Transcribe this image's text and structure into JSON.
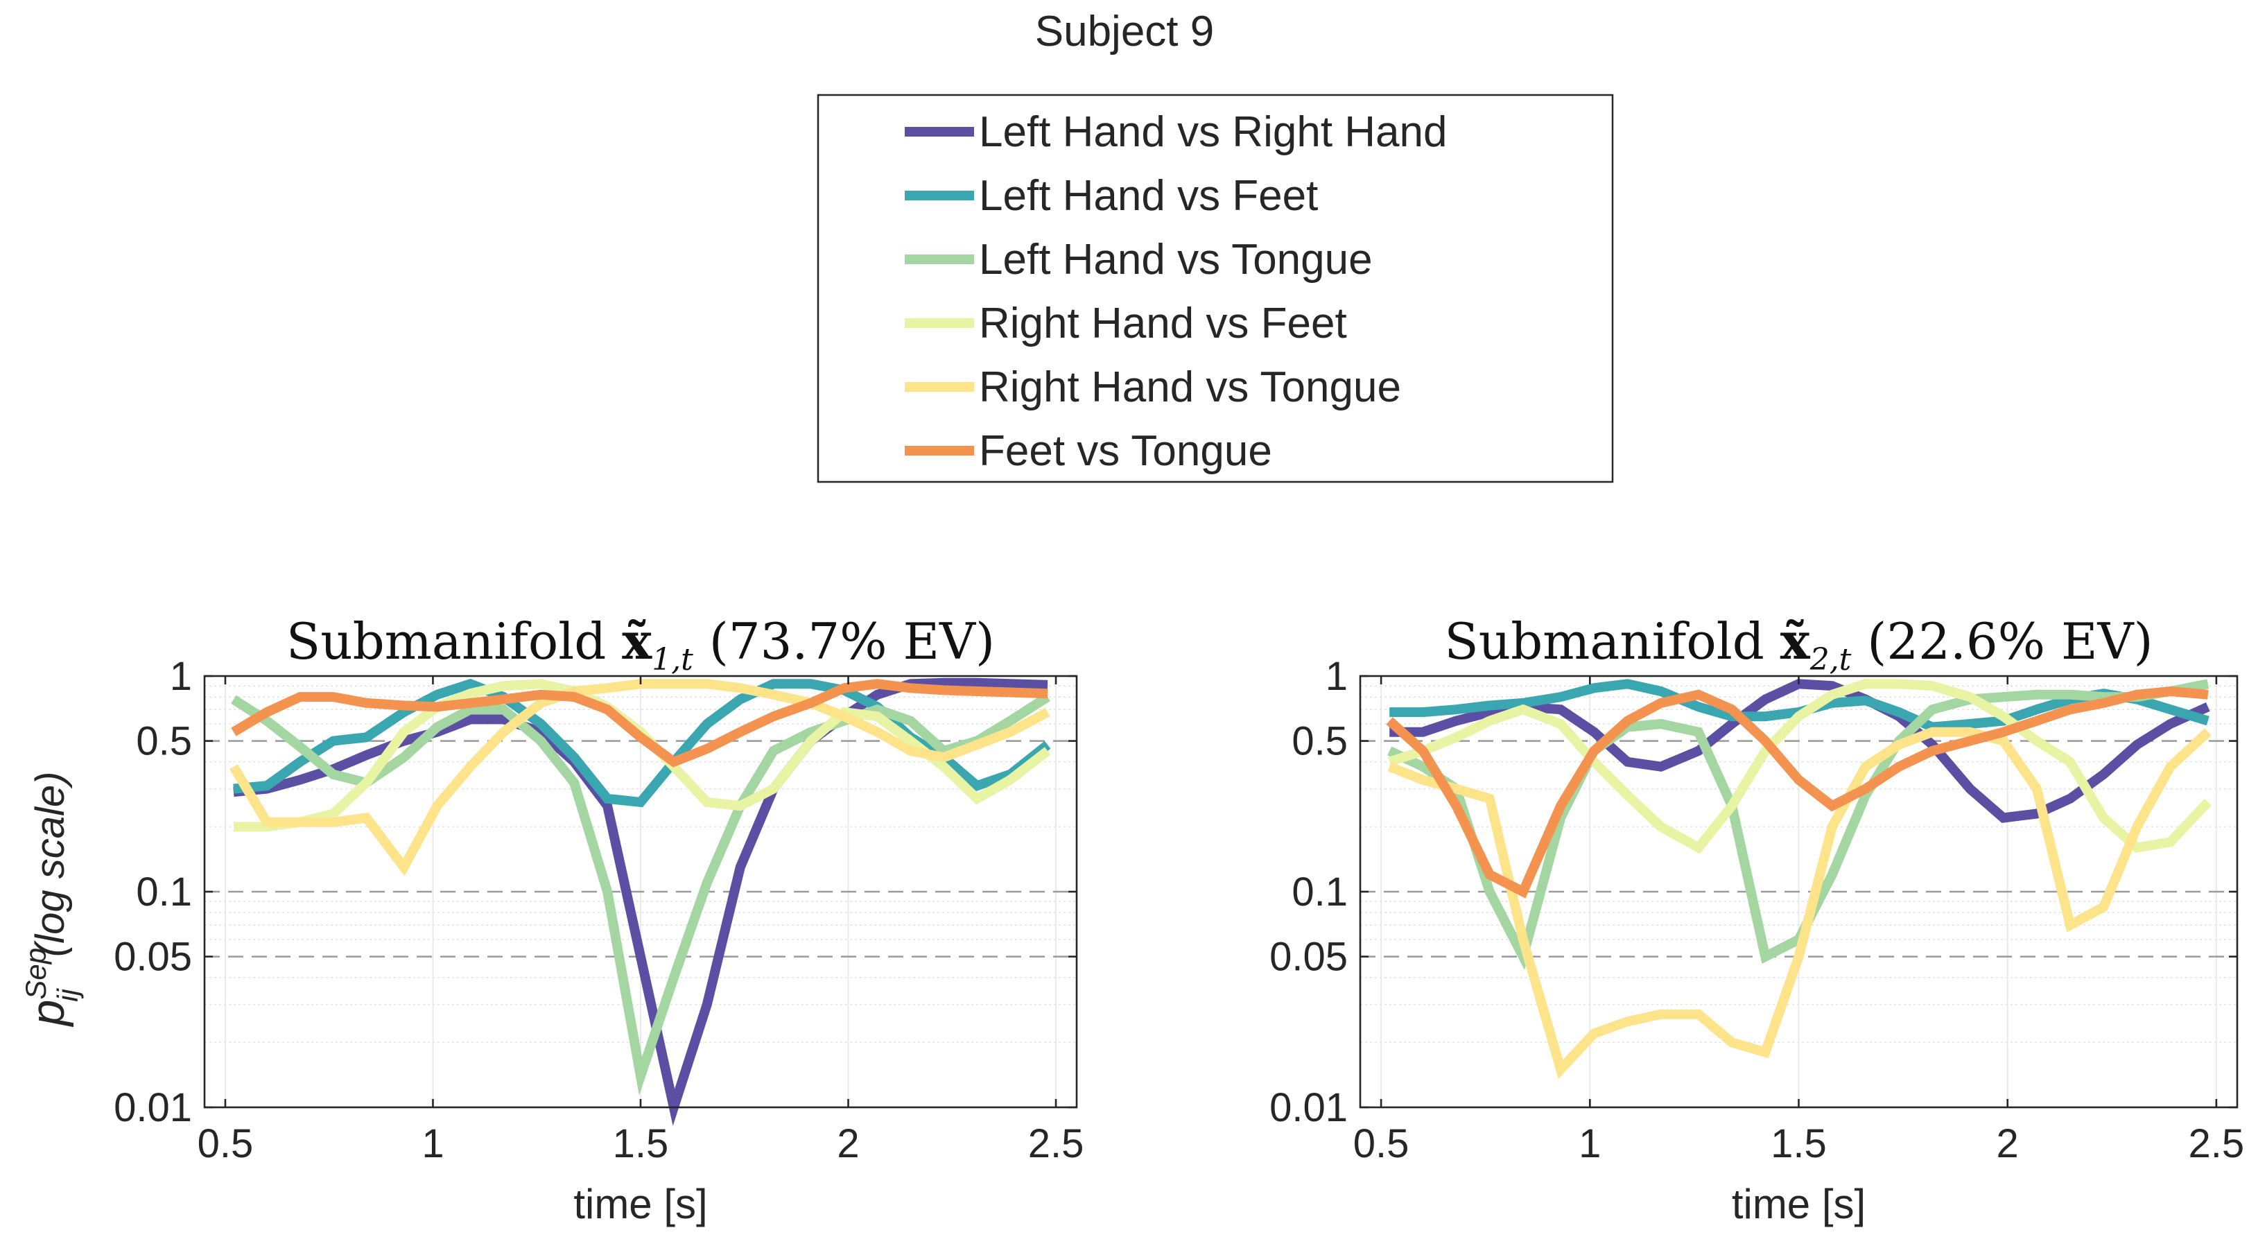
{
  "figure": {
    "suptitle": "Subject 9"
  },
  "legend": {
    "entries": [
      {
        "label": "Left Hand vs Right Hand",
        "color": "#5a4fa3"
      },
      {
        "label": "Left Hand vs Feet",
        "color": "#3aa6b0"
      },
      {
        "label": "Left Hand vs Tongue",
        "color": "#a3d6a0"
      },
      {
        "label": "Right Hand vs Feet",
        "color": "#e8f3a4"
      },
      {
        "label": "Right Hand vs Tongue",
        "color": "#fde48a"
      },
      {
        "label": "Feet vs Tongue",
        "color": "#f4924f"
      }
    ]
  },
  "chart_data": [
    {
      "type": "line",
      "title_prefix": "Submanifold ",
      "title_symbol": "x̃",
      "title_subscript": "1,t",
      "title_suffix": " (73.7% EV)",
      "xlabel": "time [s]",
      "ylabel_base": "p",
      "ylabel_sup": "Sep",
      "ylabel_sub": "ij",
      "ylabel_rest": " (log scale)",
      "yscale": "log",
      "xlim": [
        0.45,
        2.55
      ],
      "ylim": [
        0.01,
        1
      ],
      "xticks": [
        0.5,
        1,
        1.5,
        2,
        2.5
      ],
      "xtick_labels": [
        "0.5",
        "1",
        "1.5",
        "2",
        "2.5"
      ],
      "yticks": [
        0.01,
        0.05,
        0.1,
        0.5,
        1
      ],
      "ytick_labels": [
        "0.01",
        "0.05",
        "0.1",
        "0.5",
        "1"
      ],
      "dashed_lines": [
        0.05,
        0.1,
        0.5
      ],
      "x": [
        0.52,
        0.6,
        0.68,
        0.76,
        0.84,
        0.93,
        1.01,
        1.09,
        1.17,
        1.26,
        1.34,
        1.42,
        1.5,
        1.58,
        1.66,
        1.74,
        1.82,
        1.91,
        1.99,
        2.07,
        2.15,
        2.23,
        2.31,
        2.39,
        2.48
      ],
      "series": [
        {
          "name": "Left Hand vs Right Hand",
          "values": [
            0.29,
            0.3,
            0.33,
            0.37,
            0.43,
            0.5,
            0.55,
            0.63,
            0.63,
            0.55,
            0.4,
            0.25,
            0.05,
            0.01,
            0.03,
            0.13,
            0.3,
            0.5,
            0.65,
            0.82,
            0.92,
            0.93,
            0.93,
            0.92,
            0.91
          ]
        },
        {
          "name": "Left Hand vs Feet",
          "values": [
            0.3,
            0.31,
            0.4,
            0.5,
            0.52,
            0.68,
            0.82,
            0.92,
            0.8,
            0.6,
            0.42,
            0.27,
            0.26,
            0.4,
            0.6,
            0.78,
            0.92,
            0.92,
            0.86,
            0.72,
            0.52,
            0.42,
            0.31,
            0.35,
            0.48
          ]
        },
        {
          "name": "Left Hand vs Tongue",
          "values": [
            0.78,
            0.62,
            0.47,
            0.35,
            0.32,
            0.42,
            0.58,
            0.7,
            0.7,
            0.5,
            0.32,
            0.1,
            0.014,
            0.04,
            0.11,
            0.25,
            0.45,
            0.55,
            0.62,
            0.7,
            0.62,
            0.45,
            0.5,
            0.62,
            0.8
          ]
        },
        {
          "name": "Right Hand vs Feet",
          "values": [
            0.2,
            0.2,
            0.21,
            0.23,
            0.32,
            0.55,
            0.72,
            0.83,
            0.9,
            0.92,
            0.85,
            0.72,
            0.55,
            0.38,
            0.26,
            0.25,
            0.3,
            0.5,
            0.68,
            0.65,
            0.5,
            0.38,
            0.27,
            0.33,
            0.45
          ]
        },
        {
          "name": "Right Hand vs Tongue",
          "values": [
            0.38,
            0.21,
            0.21,
            0.21,
            0.22,
            0.13,
            0.25,
            0.38,
            0.55,
            0.75,
            0.85,
            0.88,
            0.92,
            0.92,
            0.92,
            0.88,
            0.82,
            0.75,
            0.65,
            0.55,
            0.45,
            0.42,
            0.48,
            0.55,
            0.68
          ]
        },
        {
          "name": "Feet vs Tongue",
          "values": [
            0.55,
            0.68,
            0.8,
            0.8,
            0.75,
            0.73,
            0.72,
            0.75,
            0.78,
            0.82,
            0.8,
            0.7,
            0.52,
            0.4,
            0.46,
            0.55,
            0.65,
            0.75,
            0.88,
            0.92,
            0.88,
            0.86,
            0.85,
            0.84,
            0.83
          ]
        }
      ]
    },
    {
      "type": "line",
      "title_prefix": "Submanifold ",
      "title_symbol": "x̃",
      "title_subscript": "2,t",
      "title_suffix": " (22.6% EV)",
      "xlabel": "time [s]",
      "yscale": "log",
      "xlim": [
        0.45,
        2.55
      ],
      "ylim": [
        0.01,
        1
      ],
      "xticks": [
        0.5,
        1,
        1.5,
        2,
        2.5
      ],
      "xtick_labels": [
        "0.5",
        "1",
        "1.5",
        "2",
        "2.5"
      ],
      "yticks": [
        0.01,
        0.05,
        0.1,
        0.5,
        1
      ],
      "ytick_labels": [
        "0.01",
        "0.05",
        "0.1",
        "0.5",
        "1"
      ],
      "dashed_lines": [
        0.05,
        0.1,
        0.5
      ],
      "x": [
        0.52,
        0.6,
        0.68,
        0.76,
        0.84,
        0.93,
        1.01,
        1.09,
        1.17,
        1.26,
        1.34,
        1.42,
        1.5,
        1.58,
        1.66,
        1.74,
        1.82,
        1.91,
        1.99,
        2.07,
        2.15,
        2.23,
        2.31,
        2.39,
        2.48
      ],
      "series": [
        {
          "name": "Left Hand vs Right Hand",
          "values": [
            0.55,
            0.55,
            0.62,
            0.68,
            0.72,
            0.7,
            0.55,
            0.4,
            0.38,
            0.45,
            0.6,
            0.78,
            0.92,
            0.9,
            0.78,
            0.65,
            0.48,
            0.3,
            0.22,
            0.23,
            0.27,
            0.35,
            0.48,
            0.6,
            0.72
          ]
        },
        {
          "name": "Left Hand vs Feet",
          "values": [
            0.68,
            0.68,
            0.7,
            0.73,
            0.75,
            0.8,
            0.88,
            0.92,
            0.85,
            0.72,
            0.65,
            0.65,
            0.68,
            0.75,
            0.77,
            0.68,
            0.58,
            0.6,
            0.62,
            0.7,
            0.78,
            0.83,
            0.78,
            0.7,
            0.62
          ]
        },
        {
          "name": "Left Hand vs Tongue",
          "values": [
            0.45,
            0.38,
            0.3,
            0.1,
            0.05,
            0.22,
            0.45,
            0.58,
            0.6,
            0.55,
            0.25,
            0.05,
            0.06,
            0.12,
            0.28,
            0.5,
            0.7,
            0.78,
            0.8,
            0.82,
            0.82,
            0.8,
            0.8,
            0.85,
            0.92
          ]
        },
        {
          "name": "Right Hand vs Feet",
          "values": [
            0.4,
            0.45,
            0.52,
            0.62,
            0.7,
            0.6,
            0.4,
            0.28,
            0.2,
            0.16,
            0.25,
            0.45,
            0.65,
            0.82,
            0.92,
            0.92,
            0.9,
            0.8,
            0.65,
            0.5,
            0.4,
            0.22,
            0.16,
            0.17,
            0.26
          ]
        },
        {
          "name": "Right Hand vs Tongue",
          "values": [
            0.38,
            0.33,
            0.3,
            0.27,
            0.06,
            0.015,
            0.022,
            0.025,
            0.027,
            0.027,
            0.02,
            0.018,
            0.05,
            0.2,
            0.38,
            0.48,
            0.55,
            0.55,
            0.5,
            0.3,
            0.07,
            0.085,
            0.2,
            0.38,
            0.55
          ]
        },
        {
          "name": "Feet vs Tongue",
          "values": [
            0.62,
            0.45,
            0.25,
            0.12,
            0.1,
            0.25,
            0.45,
            0.62,
            0.75,
            0.82,
            0.7,
            0.5,
            0.33,
            0.25,
            0.3,
            0.38,
            0.45,
            0.5,
            0.55,
            0.62,
            0.7,
            0.75,
            0.82,
            0.85,
            0.82
          ]
        }
      ]
    }
  ]
}
